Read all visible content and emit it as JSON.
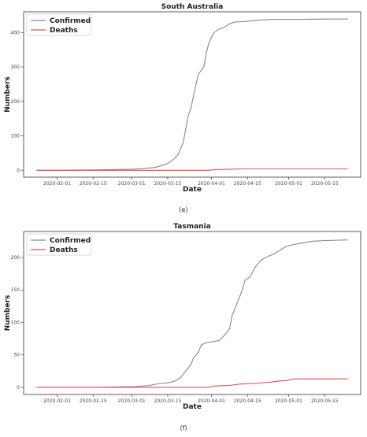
{
  "chart_data": [
    {
      "type": "line",
      "title": "South Australia",
      "xlabel": "Date",
      "ylabel": "Numbers",
      "caption": "(e)",
      "legend_position": "top-left",
      "grid": false,
      "xlim": [
        "2020-01-19",
        "2020-05-29"
      ],
      "ylim": [
        -20,
        460
      ],
      "xticks": [
        "2020-02-01",
        "2020-02-15",
        "2020-03-01",
        "2020-03-15",
        "2020-04-01",
        "2020-04-15",
        "2020-05-01",
        "2020-05-15"
      ],
      "yticks": [
        0,
        100,
        200,
        300,
        400
      ],
      "series": [
        {
          "name": "Confirmed",
          "color": "#888888",
          "points": [
            [
              "2020-01-24",
              0
            ],
            [
              "2020-02-01",
              0
            ],
            [
              "2020-02-15",
              1
            ],
            [
              "2020-03-01",
              3
            ],
            [
              "2020-03-05",
              5
            ],
            [
              "2020-03-10",
              8
            ],
            [
              "2020-03-13",
              15
            ],
            [
              "2020-03-15",
              20
            ],
            [
              "2020-03-17",
              30
            ],
            [
              "2020-03-19",
              45
            ],
            [
              "2020-03-21",
              80
            ],
            [
              "2020-03-23",
              160
            ],
            [
              "2020-03-24",
              180
            ],
            [
              "2020-03-26",
              250
            ],
            [
              "2020-03-27",
              280
            ],
            [
              "2020-03-29",
              300
            ],
            [
              "2020-03-30",
              340
            ],
            [
              "2020-03-31",
              370
            ],
            [
              "2020-04-01",
              385
            ],
            [
              "2020-04-02",
              400
            ],
            [
              "2020-04-04",
              410
            ],
            [
              "2020-04-06",
              415
            ],
            [
              "2020-04-08",
              425
            ],
            [
              "2020-04-10",
              430
            ],
            [
              "2020-04-14",
              432
            ],
            [
              "2020-04-18",
              435
            ],
            [
              "2020-04-22",
              437
            ],
            [
              "2020-04-26",
              438
            ],
            [
              "2020-05-05",
              438
            ],
            [
              "2020-05-15",
              439
            ],
            [
              "2020-05-24",
              439
            ]
          ]
        },
        {
          "name": "Deaths",
          "color": "#e05050",
          "points": [
            [
              "2020-01-24",
              0
            ],
            [
              "2020-03-31",
              0
            ],
            [
              "2020-04-01",
              1
            ],
            [
              "2020-04-03",
              2
            ],
            [
              "2020-04-08",
              3
            ],
            [
              "2020-04-12",
              4
            ],
            [
              "2020-05-24",
              4
            ]
          ]
        }
      ]
    },
    {
      "type": "line",
      "title": "Tasmania",
      "xlabel": "Date",
      "ylabel": "Numbers",
      "caption": "(f)",
      "legend_position": "top-left",
      "grid": false,
      "xlim": [
        "2020-01-19",
        "2020-05-29"
      ],
      "ylim": [
        -11,
        240
      ],
      "xticks": [
        "2020-02-01",
        "2020-02-15",
        "2020-03-01",
        "2020-03-15",
        "2020-04-01",
        "2020-04-15",
        "2020-05-01",
        "2020-05-15"
      ],
      "yticks": [
        0,
        50,
        100,
        150,
        200
      ],
      "series": [
        {
          "name": "Confirmed",
          "color": "#888888",
          "points": [
            [
              "2020-01-24",
              0
            ],
            [
              "2020-02-15",
              0
            ],
            [
              "2020-03-02",
              1
            ],
            [
              "2020-03-08",
              3
            ],
            [
              "2020-03-12",
              6
            ],
            [
              "2020-03-15",
              7
            ],
            [
              "2020-03-18",
              10
            ],
            [
              "2020-03-20",
              15
            ],
            [
              "2020-03-22",
              25
            ],
            [
              "2020-03-24",
              35
            ],
            [
              "2020-03-25",
              45
            ],
            [
              "2020-03-27",
              55
            ],
            [
              "2020-03-28",
              65
            ],
            [
              "2020-03-30",
              69
            ],
            [
              "2020-04-01",
              70
            ],
            [
              "2020-04-04",
              72
            ],
            [
              "2020-04-06",
              80
            ],
            [
              "2020-04-08",
              90
            ],
            [
              "2020-04-09",
              110
            ],
            [
              "2020-04-11",
              130
            ],
            [
              "2020-04-13",
              150
            ],
            [
              "2020-04-14",
              165
            ],
            [
              "2020-04-16",
              170
            ],
            [
              "2020-04-18",
              185
            ],
            [
              "2020-04-20",
              195
            ],
            [
              "2020-04-22",
              200
            ],
            [
              "2020-04-25",
              205
            ],
            [
              "2020-04-28",
              212
            ],
            [
              "2020-04-30",
              217
            ],
            [
              "2020-05-03",
              220
            ],
            [
              "2020-05-06",
              222
            ],
            [
              "2020-05-10",
              225
            ],
            [
              "2020-05-15",
              226
            ],
            [
              "2020-05-24",
              227
            ]
          ]
        },
        {
          "name": "Deaths",
          "color": "#e05050",
          "points": [
            [
              "2020-01-24",
              0
            ],
            [
              "2020-03-31",
              0
            ],
            [
              "2020-04-02",
              2
            ],
            [
              "2020-04-08",
              3
            ],
            [
              "2020-04-12",
              5
            ],
            [
              "2020-04-18",
              6
            ],
            [
              "2020-04-24",
              8
            ],
            [
              "2020-04-28",
              10
            ],
            [
              "2020-05-01",
              11
            ],
            [
              "2020-05-03",
              13
            ],
            [
              "2020-05-24",
              13
            ]
          ]
        }
      ]
    }
  ]
}
